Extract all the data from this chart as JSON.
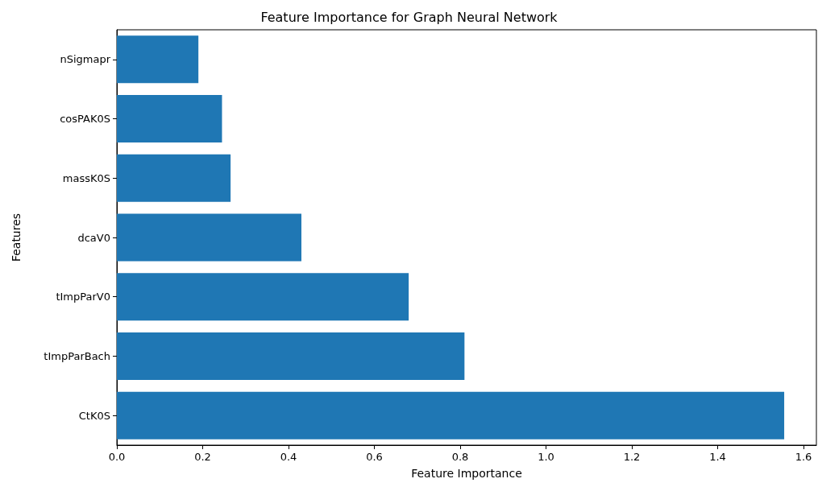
{
  "chart_data": {
    "type": "bar",
    "orientation": "horizontal",
    "title": "Feature Importance for Graph Neural Network",
    "xlabel": "Feature Importance",
    "ylabel": "Features",
    "categories": [
      "nSigmapr",
      "cosPAK0S",
      "massK0S",
      "dcaV0",
      "tImpParV0",
      "tImpParBach",
      "CtK0S"
    ],
    "values": [
      0.19,
      0.245,
      0.265,
      0.43,
      0.68,
      0.81,
      1.555
    ],
    "color": "#1f77b4",
    "xlim": [
      0,
      1.63
    ],
    "xticks": [
      {
        "value": 0,
        "label": "0.0"
      },
      0.2,
      0.4,
      0.6,
      0.8,
      {
        "value": 1,
        "label": "1.0"
      },
      1.2,
      1.4,
      1.6
    ],
    "grid": false
  }
}
